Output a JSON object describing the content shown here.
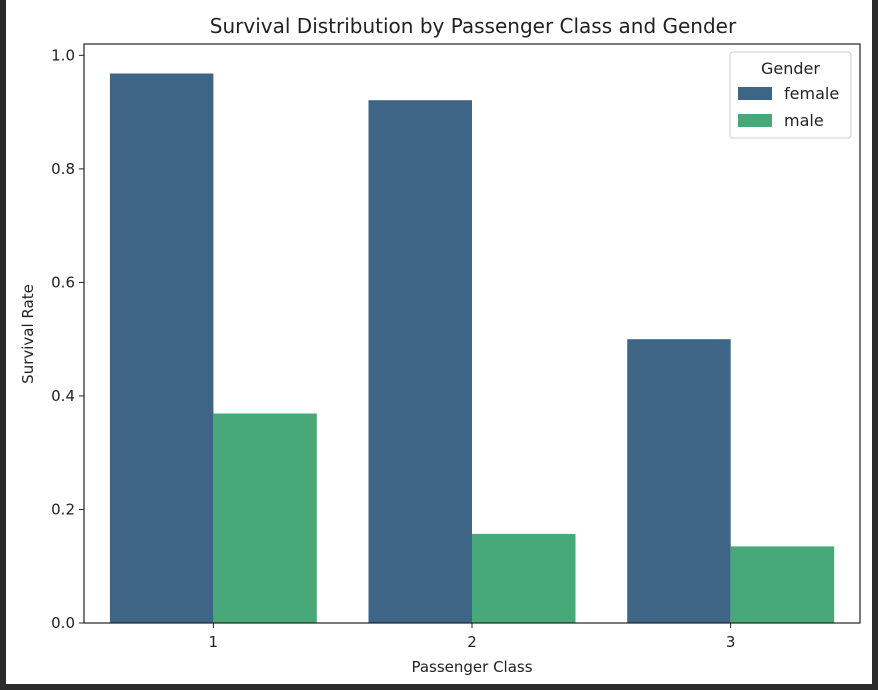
{
  "chart_data": {
    "type": "bar",
    "title": "Survival Distribution by Passenger Class and Gender",
    "xlabel": "Passenger Class",
    "ylabel": "Survival Rate",
    "categories": [
      "1",
      "2",
      "3"
    ],
    "series": [
      {
        "name": "female",
        "color": "#3e6585",
        "values": [
          0.968,
          0.921,
          0.5
        ]
      },
      {
        "name": "male",
        "color": "#48a978",
        "values": [
          0.369,
          0.157,
          0.135
        ]
      }
    ],
    "ylim": [
      0,
      1.02
    ],
    "yticks": [
      "0.0",
      "0.2",
      "0.4",
      "0.6",
      "0.8",
      "1.0"
    ],
    "legend": {
      "title": "Gender",
      "placement": "top-right"
    },
    "grid": false
  }
}
